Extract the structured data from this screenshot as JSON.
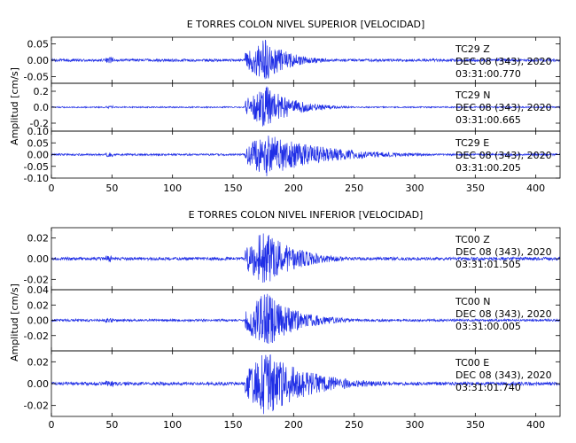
{
  "trace_color": "#1f2ee6",
  "axis_color": "#000000",
  "chart_data": [
    {
      "type": "line",
      "title": "E TORRES COLON NIVEL SUPERIOR [VELOCIDAD]",
      "ylabel": "Amplitud [cm/s]",
      "xlim": [
        0,
        420
      ],
      "x_ticks": [
        "0",
        "50",
        "100",
        "150",
        "200",
        "250",
        "300",
        "350",
        "400"
      ],
      "panels": [
        {
          "component": "TC29 Z",
          "station": "TC29",
          "channel": "Z",
          "date": "DEC 08 (343), 2020",
          "time": "03:31:00.770",
          "ylim": [
            -0.07,
            0.07
          ],
          "y_ticks": [
            "-0.05",
            "0.00",
            "0.05"
          ],
          "peak": 0.065,
          "onset": 160,
          "peak_time": 176,
          "decay": 20,
          "noise": 0.004
        },
        {
          "component": "TC29 N",
          "station": "TC29",
          "channel": "N",
          "date": "DEC 08 (343), 2020",
          "time": "03:31:00.665",
          "ylim": [
            -0.3,
            0.3
          ],
          "y_ticks": [
            "-0.2",
            "0.0",
            "0.2"
          ],
          "peak": 0.27,
          "onset": 160,
          "peak_time": 177,
          "decay": 22,
          "noise": 0.008
        },
        {
          "component": "TC29 E",
          "station": "TC29",
          "channel": "E",
          "date": "DEC 08 (343), 2020",
          "time": "03:31:00.205",
          "ylim": [
            -0.1,
            0.1
          ],
          "y_ticks": [
            "-0.10",
            "-0.05",
            "0.00",
            "0.05",
            "0.10"
          ],
          "peak": 0.095,
          "onset": 160,
          "peak_time": 177,
          "decay": 45,
          "noise": 0.004
        }
      ]
    },
    {
      "type": "line",
      "title": "E TORRES COLON NIVEL INFERIOR [VELOCIDAD]",
      "ylabel": "Amplitud [cm/s]",
      "xlim": [
        0,
        420
      ],
      "x_ticks": [
        "0",
        "50",
        "100",
        "150",
        "200",
        "250",
        "300",
        "350",
        "400"
      ],
      "panels": [
        {
          "component": "TC00 Z",
          "station": "TC00",
          "channel": "Z",
          "date": "DEC 08 (343), 2020",
          "time": "03:31:01.505",
          "ylim": [
            -0.03,
            0.03
          ],
          "y_ticks": [
            "-0.02",
            "0.00",
            "0.02"
          ],
          "peak": 0.028,
          "onset": 160,
          "peak_time": 176,
          "decay": 25,
          "noise": 0.0015
        },
        {
          "component": "TC00 N",
          "station": "TC00",
          "channel": "N",
          "date": "DEC 08 (343), 2020",
          "time": "03:31:00.005",
          "ylim": [
            -0.04,
            0.04
          ],
          "y_ticks": [
            "-0.02",
            "0.00",
            "0.02",
            "0.04"
          ],
          "peak": 0.037,
          "onset": 160,
          "peak_time": 177,
          "decay": 25,
          "noise": 0.0015
        },
        {
          "component": "TC00 E",
          "station": "TC00",
          "channel": "E",
          "date": "DEC 08 (343), 2020",
          "time": "03:31:01.740",
          "ylim": [
            -0.03,
            0.03
          ],
          "y_ticks": [
            "-0.02",
            "0.00",
            "0.02"
          ],
          "peak": 0.03,
          "onset": 160,
          "peak_time": 177,
          "decay": 35,
          "noise": 0.0015
        }
      ]
    }
  ]
}
